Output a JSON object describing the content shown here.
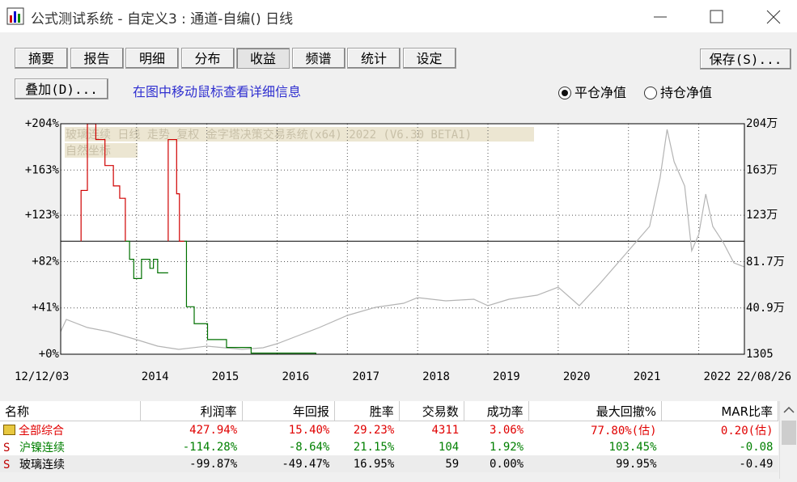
{
  "window": {
    "title": "公式测试系统 - 自定义3 : 通道-自编() 日线"
  },
  "tabs": [
    "摘要",
    "报告",
    "明细",
    "分布",
    "收益",
    "频谱",
    "统计",
    "设定"
  ],
  "selected_tab": "收益",
  "save_button": "保存(S)...",
  "overlay_button": "叠加(D)...",
  "hint": "在图中移动鼠标查看详细信息",
  "radios": [
    {
      "label": "平仓净值",
      "checked": true
    },
    {
      "label": "持仓净值",
      "checked": false
    }
  ],
  "chart_data": {
    "type": "line",
    "annotations": [
      "玻璃连续 日线 走势 复权 金字塔决策交易系统(x64) 2022 (V6.30 BETA1)",
      "自然坐标"
    ],
    "xlim": [
      2012.92,
      2022.65
    ],
    "xticks": [
      {
        "value": 2012.92,
        "label": "12/12/03"
      },
      2014,
      2015,
      2016,
      2017,
      2018,
      2019,
      2020,
      2021,
      2022,
      {
        "value": 2022.65,
        "label": "22/08/26"
      }
    ],
    "ylim": [
      0,
      204
    ],
    "yticks": [
      {
        "value": 0,
        "label": "+0%"
      },
      {
        "value": 41,
        "label": "+41%"
      },
      {
        "value": 82,
        "label": "+82%"
      },
      {
        "value": 123,
        "label": "+123%"
      },
      {
        "value": 163,
        "label": "+163%"
      },
      {
        "value": 204,
        "label": "+204%"
      }
    ],
    "y2lim": [
      1305,
      2040000
    ],
    "y2ticks": [
      1305,
      {
        "value": 409000,
        "label": "40.9万"
      },
      {
        "value": 817000,
        "label": "81.7万"
      },
      {
        "value": 1230000,
        "label": "123万"
      },
      {
        "value": 1630000,
        "label": "163万"
      },
      {
        "value": 2040000,
        "label": "204万"
      }
    ],
    "baseline": 100,
    "grid": true,
    "series": [
      {
        "color": "#b4b4b4",
        "axis": "y2",
        "step": false,
        "x": [
          2012.92,
          2013.0,
          2013.3,
          2013.6,
          2014.0,
          2014.3,
          2014.6,
          2015.0,
          2015.5,
          2015.8,
          2016.0,
          2016.3,
          2016.6,
          2017.0,
          2017.4,
          2017.8,
          2018.0,
          2018.4,
          2018.8,
          2019.0,
          2019.3,
          2019.7,
          2020.0,
          2020.3,
          2020.6,
          2020.9,
          2021.1,
          2021.3,
          2021.45,
          2021.55,
          2021.65,
          2021.8,
          2021.9,
          2022.0,
          2022.1,
          2022.2,
          2022.35,
          2022.5,
          2022.65
        ],
        "values": [
          201600,
          308900,
          237350,
          201600,
          130060,
          72840,
          44220,
          72840,
          44220,
          58530,
          94290,
          165820,
          237350,
          344650,
          416180,
          451940,
          502020,
          473400,
          487710,
          430490,
          487710,
          523470,
          595000,
          430490,
          630770,
          845360,
          988420,
          1131480,
          1560650,
          1990000,
          1703720,
          1489130,
          916890,
          1059950,
          1417600,
          1131480,
          988420,
          809600,
          773830
        ]
      },
      {
        "color": "#d00000",
        "axis": "y",
        "step": true,
        "x": [
          2013.21,
          2013.21,
          2013.3,
          2013.42,
          2013.55,
          2013.67,
          2013.76,
          2013.84,
          null,
          2014.45,
          2014.45,
          2014.57,
          2014.61,
          2014.68
        ],
        "values": [
          100,
          145,
          204,
          190,
          167,
          149,
          138,
          100,
          null,
          100,
          190,
          142,
          100,
          100
        ]
      },
      {
        "color": "#007000",
        "axis": "y",
        "step": true,
        "x": [
          2013.84,
          2013.9,
          2013.96,
          2014.04,
          2014.07,
          2014.19,
          2014.24,
          2014.3,
          2014.45,
          null,
          2014.68,
          2014.71,
          2014.82,
          2015.01,
          2015.28,
          2015.63,
          2016.55
        ],
        "values": [
          100,
          84,
          67,
          67,
          84,
          76,
          84,
          72,
          72,
          null,
          100,
          42,
          27,
          13,
          6,
          1,
          0
        ]
      }
    ]
  },
  "table": {
    "columns": [
      "名称",
      "利润率",
      "年回报",
      "胜率",
      "交易数",
      "成功率",
      "最大回撤%",
      "MAR比率"
    ],
    "rows": [
      {
        "color": "#e00000",
        "marker": "folder",
        "cells": [
          "全部综合",
          "427.94%",
          "15.40%",
          "29.23%",
          "4311",
          "3.06%",
          "77.80%(估)",
          "0.20(估)"
        ]
      },
      {
        "color": "#008000",
        "marker": "S",
        "cells": [
          "沪镍连续",
          "-114.28%",
          "-8.64%",
          "21.15%",
          "104",
          "1.92%",
          "103.45%",
          "-0.08"
        ]
      },
      {
        "color": "#000000",
        "marker": "S",
        "cells": [
          "玻璃连续",
          "-99.87%",
          "-49.47%",
          "16.95%",
          "59",
          "0.00%",
          "99.95%",
          "-0.49"
        ]
      }
    ]
  }
}
